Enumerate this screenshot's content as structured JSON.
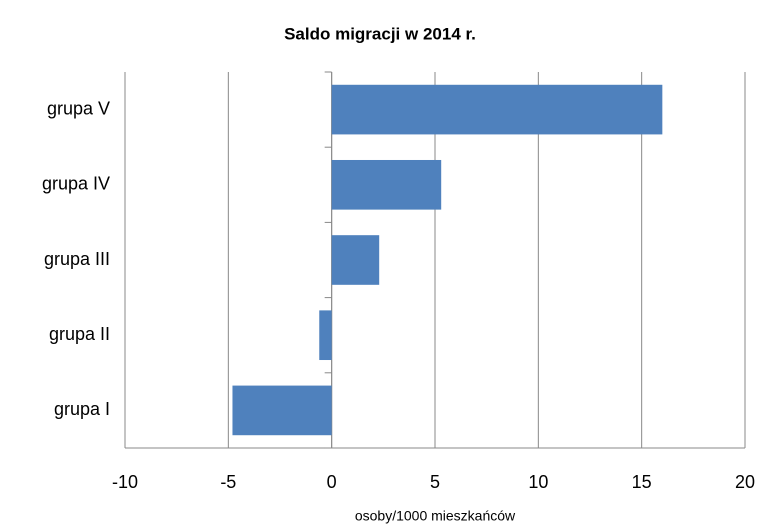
{
  "chart_data": {
    "type": "bar",
    "orientation": "horizontal",
    "title": "Saldo migracji w 2014 r.",
    "xlabel": "osoby/1000 mieszkańców",
    "categories": [
      "grupa I",
      "grupa II",
      "grupa III",
      "grupa IV",
      "grupa V"
    ],
    "values": [
      -4.8,
      -0.6,
      2.3,
      5.3,
      16.0
    ],
    "color": "#4f81bd",
    "xlim": [
      -10,
      20
    ],
    "xticks": [
      -10,
      -5,
      0,
      5,
      10,
      15,
      20
    ],
    "grid": true
  }
}
